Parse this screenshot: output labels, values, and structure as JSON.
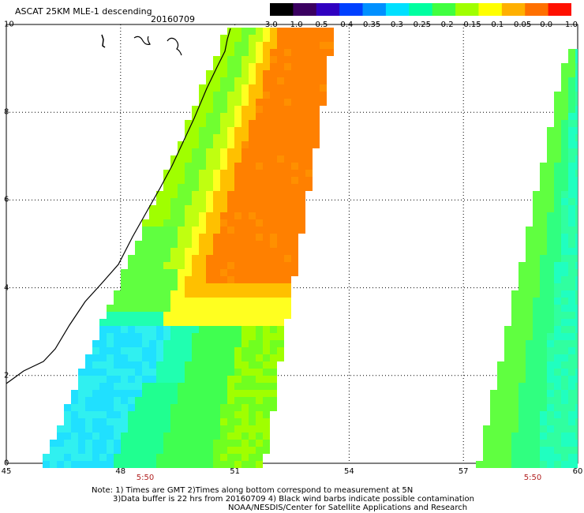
{
  "header": {
    "title": "ASCAT 25KM MLE-1 descending",
    "date": "20160709"
  },
  "colorbar": {
    "labels": [
      "-3.0",
      "-1.0",
      "-0.5",
      "-0.4",
      "-0.35",
      "-0.3",
      "-0.25",
      "-0.2",
      "-0.15",
      "-0.1",
      "-0.05",
      "0.0",
      "1.0"
    ],
    "colors": [
      "#000000",
      "#3a0060",
      "#3000c0",
      "#0040ff",
      "#0090ff",
      "#00e0ff",
      "#00ffa0",
      "#40ff40",
      "#a0ff00",
      "#ffff00",
      "#ffb000",
      "#ff7000",
      "#ff1000"
    ]
  },
  "axes": {
    "x_ticks": [
      "45",
      "48",
      "51",
      "54",
      "57",
      "60"
    ],
    "y_ticks": [
      "0",
      "2",
      "4",
      "6",
      "8",
      "10"
    ],
    "lon_range": [
      45,
      60
    ],
    "lat_range": [
      0,
      10
    ]
  },
  "swath_times": [
    "5:50",
    "5:50"
  ],
  "notes": [
    "Note: 1) Times are GMT 2)Times along bottom correspond to measurement at 5N",
    "3)Data buffer is 22 hrs from 20160709 4) Black wind barbs indicate possible contamination",
    "NOAA/NESDIS/Center for Satellite Applications and Research"
  ]
}
